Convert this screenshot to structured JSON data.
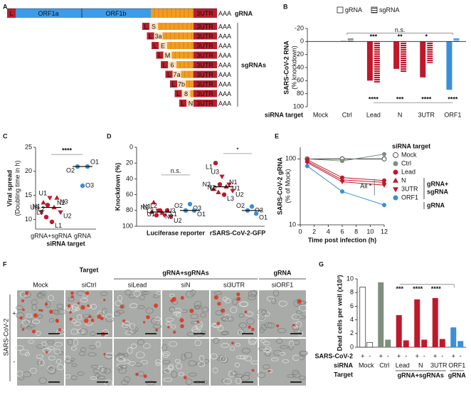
{
  "panel_letters": [
    "A",
    "B",
    "C",
    "D",
    "E",
    "F",
    "G"
  ],
  "genome": {
    "grna": {
      "leader": "L",
      "orfs": [
        "ORF1a",
        "ORF1b"
      ],
      "utr": "3UTR",
      "polya": "AAA",
      "label": "gRNA"
    },
    "sgrnas": {
      "genes": [
        "S",
        "3a",
        "E",
        "M",
        "6",
        "7a",
        "7b",
        "8",
        "N"
      ],
      "label": "sgRNAs"
    }
  },
  "chart_data": [
    {
      "type": "bar",
      "ylabel": [
        "SARS-CoV-2 RNA",
        "(% knockdown)"
      ],
      "xlabel": "siRNA target",
      "categories": [
        "Mock",
        "Ctrl",
        "Lead",
        "N",
        "3UTR",
        "ORF1"
      ],
      "category_colors": [
        "#ffffff",
        "#7d8f7e",
        "#c0182b",
        "#c0182b",
        "#c0182b",
        "#3a8fd8"
      ],
      "series": [
        {
          "name": "gRNA",
          "pattern": "solid",
          "values": [
            0,
            -1,
            60,
            42,
            55,
            74
          ]
        },
        {
          "name": "sgRNA",
          "pattern": "hatch",
          "values": [
            0,
            -5,
            63,
            47,
            33,
            -5
          ]
        }
      ],
      "ylim": [
        -20,
        100
      ],
      "inverted": true,
      "yticks": [
        -20,
        0,
        20,
        40,
        60,
        80,
        100
      ],
      "annotations_top": [
        "***",
        "**",
        "*"
      ],
      "annotation_bracket": "n.s.",
      "annotations_bottom": [
        "****",
        "***",
        "****",
        "****"
      ]
    },
    {
      "type": "scatter",
      "ylabel": [
        "Viral spread",
        "(Doubling time in h)"
      ],
      "xlabel": "siRNA target",
      "categories": [
        "gRNA+sgRNA",
        "gRNA"
      ],
      "groups": [
        {
          "color": "#c0182b",
          "labels": [
            "N1",
            "U1",
            "N3",
            "U3",
            "L2",
            "N2",
            "U2",
            "L3",
            "L1"
          ],
          "values": [
            13.5,
            14.5,
            14.5,
            11.5,
            13,
            12.5,
            11.5,
            10.5,
            9.5
          ],
          "median": 12.5
        },
        {
          "color": "#3a8fd8",
          "labels": [
            "O2",
            "O1",
            "O3"
          ],
          "values": [
            21,
            21,
            17
          ],
          "median": 21
        }
      ],
      "ylim": [
        8,
        25
      ],
      "yticks": [
        10,
        15,
        20,
        25
      ],
      "annotation": "****"
    },
    {
      "type": "line",
      "ylabel": [
        "SARS-CoV-2 gRNA",
        "(% of Mock)"
      ],
      "xlabel": "Time post infection (h)",
      "x": [
        1,
        6,
        12
      ],
      "xlim": [
        0,
        12
      ],
      "xticks": [
        0,
        2,
        4,
        6,
        8,
        10,
        12
      ],
      "ylim": [
        10,
        150
      ],
      "yticks": [
        10,
        100
      ],
      "log_scale": true,
      "legend_title": "siRNA target",
      "legend_groups": [
        [
          "gRNA+",
          "sgRNA"
        ],
        [
          "gRNA"
        ]
      ],
      "series": [
        {
          "name": "Mock",
          "color": "#ffffff",
          "marker": "circle",
          "values": [
            100,
            100,
            100
          ]
        },
        {
          "name": "Ctrl",
          "color": "#7d8f7e",
          "marker": "circle",
          "values": [
            100,
            93,
            118
          ]
        },
        {
          "name": "Lead",
          "color": "#c0182b",
          "marker": "circle",
          "values": [
            97,
            52,
            47
          ]
        },
        {
          "name": "N",
          "color": "#c0182b",
          "marker": "triangle",
          "values": [
            92,
            48,
            44
          ]
        },
        {
          "name": "3UTR",
          "color": "#c0182b",
          "marker": "triangle-down",
          "values": [
            88,
            45,
            40
          ]
        },
        {
          "name": "ORF1",
          "color": "#3a8fd8",
          "marker": "circle",
          "values": [
            78,
            32,
            20
          ]
        }
      ],
      "annotation": "All *"
    },
    {
      "type": "bar",
      "ylabel": "Dead cells per well (x10³)",
      "categories": [
        "Mock",
        "Ctrl",
        "Lead",
        "N",
        "3UTR",
        "ORF1"
      ],
      "category_colors": [
        "#ffffff",
        "#7d8f7e",
        "#c0182b",
        "#c0182b",
        "#c0182b",
        "#3a8fd8"
      ],
      "series": [
        {
          "name": "+",
          "values": [
            8.8,
            9.5,
            4.7,
            7.0,
            7.2,
            2.9
          ]
        },
        {
          "name": "-",
          "values": [
            0.7,
            1.1,
            1.0,
            1.1,
            1.2,
            0.9
          ]
        }
      ],
      "ylim": [
        0,
        10
      ],
      "yticks": [
        0,
        2,
        4,
        6,
        8,
        10
      ],
      "row_labels": [
        "SARS-CoV-2",
        "siRNA",
        "Target"
      ],
      "target_groups": [
        "gRNA+sgRNAs",
        "gRNA"
      ],
      "annotations": [
        "***",
        "****",
        "****"
      ]
    }
  ],
  "dot_plot": {
    "type": "scatter",
    "ylabel": "Knockdown (%)",
    "categories": [
      "Luciferase reporter",
      "rSARS-CoV-2-GFP"
    ],
    "ylim": [
      0,
      100
    ],
    "inverted": true,
    "yticks": [
      0,
      20,
      40,
      60,
      80,
      100
    ],
    "groups": [
      {
        "annotation": "n.s.",
        "series": [
          {
            "color": "#c0182b",
            "labels": [
              "N1",
              "L2",
              "L1",
              "N2",
              "U1",
              "U3",
              "U2",
              "L3",
              "N3"
            ],
            "values": [
              70,
              80,
              80,
              82,
              80,
              86,
              88,
              86,
              83
            ],
            "median": 82
          },
          {
            "color": "#3a8fd8",
            "labels": [
              "O3",
              "O2",
              "O1"
            ],
            "values": [
              72,
              80,
              80
            ],
            "median": 80
          }
        ]
      },
      {
        "annotation": "*",
        "series": [
          {
            "color": "#c0182b",
            "labels": [
              "L1",
              "U3",
              "U1",
              "N3",
              "L2",
              "N1",
              "U2",
              "N2",
              "L3"
            ],
            "values": [
              20,
              37,
              47,
              53,
              47,
              50,
              55,
              57,
              60
            ],
            "median": 50
          },
          {
            "color": "#3a8fd8",
            "labels": [
              "O3",
              "O2",
              "O1"
            ],
            "values": [
              75,
              80,
              84
            ],
            "median": 80
          }
        ]
      }
    ]
  },
  "micrographs": {
    "header": "Target",
    "groups": [
      "gRNA+sgRNAs",
      "gRNA"
    ],
    "columns": [
      "Mock",
      "siCtrl",
      "siLead",
      "siN",
      "si3UTR",
      "siORF1"
    ],
    "row_title": "SARS-CoV-2",
    "rows": [
      "+",
      "-"
    ]
  }
}
